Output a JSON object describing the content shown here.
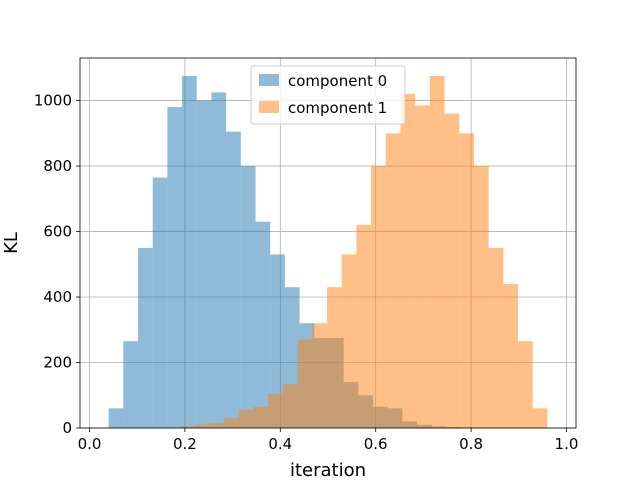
{
  "chart_data": {
    "type": "histogram",
    "title": "",
    "xlabel": "iteration",
    "ylabel": "KL",
    "xlim": [
      -0.02,
      1.02
    ],
    "ylim": [
      0,
      1130
    ],
    "xticks": [
      0.0,
      0.2,
      0.4,
      0.6,
      0.8,
      1.0
    ],
    "xtick_labels": [
      "0.0",
      "0.2",
      "0.4",
      "0.6",
      "0.8",
      "1.0"
    ],
    "yticks": [
      0,
      200,
      400,
      600,
      800,
      1000
    ],
    "ytick_labels": [
      "0",
      "200",
      "400",
      "600",
      "800",
      "1000"
    ],
    "grid": true,
    "legend_position": "upper center",
    "series": [
      {
        "name": "component 0",
        "color": "#1f77b4",
        "alpha": 0.5,
        "bin_edges": [
          0.04,
          0.0708,
          0.1016,
          0.1324,
          0.1632,
          0.194,
          0.2248,
          0.2556,
          0.2864,
          0.3172,
          0.348,
          0.3788,
          0.4096,
          0.4404,
          0.4712,
          0.502,
          0.5328,
          0.5636,
          0.5944,
          0.6252,
          0.656,
          0.6868,
          0.7176,
          0.7484,
          0.7792,
          0.81
        ],
        "counts": [
          60,
          265,
          550,
          765,
          980,
          1075,
          1000,
          1025,
          905,
          800,
          630,
          530,
          430,
          320,
          275,
          275,
          140,
          100,
          65,
          60,
          20,
          10,
          5,
          3,
          2
        ]
      },
      {
        "name": "component 1",
        "color": "#ff7f0e",
        "alpha": 0.5,
        "bin_edges": [
          0.19,
          0.2208,
          0.2516,
          0.2824,
          0.3132,
          0.344,
          0.3748,
          0.4056,
          0.4364,
          0.4672,
          0.498,
          0.5288,
          0.5596,
          0.5904,
          0.6212,
          0.652,
          0.6828,
          0.7136,
          0.7444,
          0.7752,
          0.806,
          0.8368,
          0.8676,
          0.8984,
          0.9292,
          0.96
        ],
        "counts": [
          5,
          10,
          15,
          30,
          55,
          65,
          105,
          135,
          270,
          320,
          430,
          530,
          620,
          800,
          900,
          1020,
          985,
          1075,
          960,
          900,
          800,
          550,
          440,
          265,
          60
        ]
      }
    ]
  }
}
